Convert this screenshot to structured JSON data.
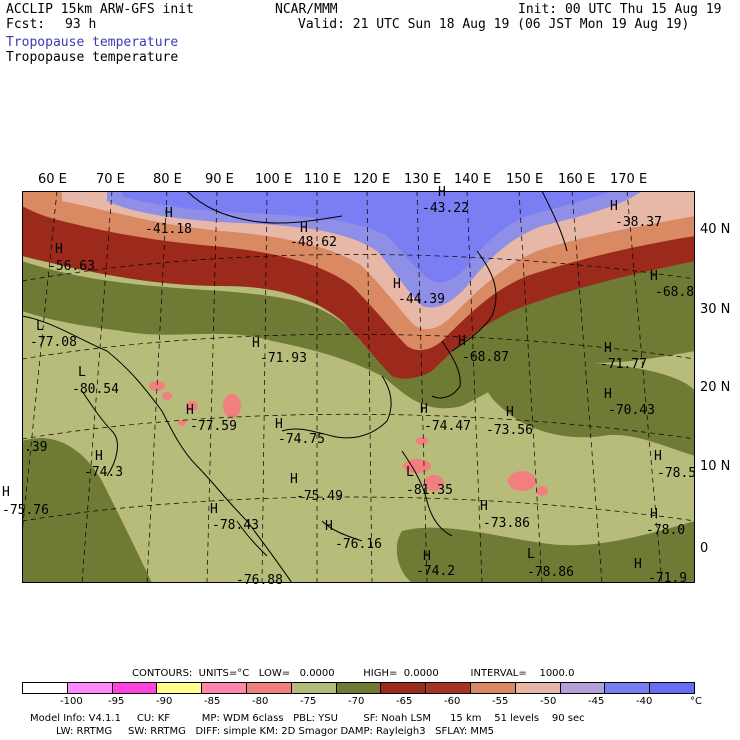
{
  "header": {
    "model": "ACCLIP 15km ARW-GFS init",
    "fcst_label": "Fcst:",
    "fcst_value": "93 h",
    "org": "NCAR/MMM",
    "init": "Init: 00 UTC Thu 15 Aug 19",
    "valid": "Valid: 21 UTC Sun 18 Aug 19 (06 JST Mon 19 Aug 19)",
    "field_title_colored": "Tropopause temperature",
    "field_title": "Tropopause temperature"
  },
  "axes": {
    "lon_labels": [
      "60 E",
      "70 E",
      "80 E",
      "90 E",
      "100 E",
      "110 E",
      "120 E",
      "130 E",
      "140 E",
      "150 E",
      "160 E",
      "170 E"
    ],
    "lat_labels": [
      "40 N",
      "30 N",
      "20 N",
      "10 N",
      "0"
    ]
  },
  "map_labels": [
    {
      "symbol": "H",
      "value": "-41.18"
    },
    {
      "symbol": "H",
      "value": "-48.62"
    },
    {
      "symbol": "H",
      "value": "-43.22"
    },
    {
      "symbol": "H",
      "value": "-38.37"
    },
    {
      "symbol": "H",
      "value": "-56.63"
    },
    {
      "symbol": "H",
      "value": "-44.39"
    },
    {
      "symbol": "H",
      "value": "-68.8"
    },
    {
      "symbol": "L",
      "value": "-77.08"
    },
    {
      "symbol": "H",
      "value": "-71.93"
    },
    {
      "symbol": "H",
      "value": "-68.87"
    },
    {
      "symbol": "H",
      "value": "-71.77"
    },
    {
      "symbol": "L",
      "value": "-80.54"
    },
    {
      "symbol": "H",
      "value": "-70.43"
    },
    {
      "symbol": "H",
      "value": "-77.59"
    },
    {
      "symbol": "H",
      "value": "-74.75"
    },
    {
      "symbol": "H",
      "value": "-74.47"
    },
    {
      "symbol": "H",
      "value": "-73.56"
    },
    {
      "symbol": "H",
      "value": "-74.3"
    },
    {
      "symbol": "L",
      "value": "-81.35"
    },
    {
      "symbol": "H",
      "value": "-78.5"
    },
    {
      "symbol": "H",
      "value": "-75.49"
    },
    {
      "symbol": "H",
      "value": "-75.76"
    },
    {
      "symbol": "H",
      "value": "-78.43"
    },
    {
      "symbol": "H",
      "value": "-73.86"
    },
    {
      "symbol": "H",
      "value": "-78.0"
    },
    {
      "symbol": "H",
      "value": "-76.16"
    },
    {
      "symbol": "H",
      "value": "-74.2"
    },
    {
      "symbol": "L",
      "value": "-78.86"
    },
    {
      "symbol": "H",
      "value": "-71.9"
    },
    {
      "symbol": "",
      "value": "-76.88"
    },
    {
      "symbol": "",
      "value": ".39"
    }
  ],
  "footer": {
    "contours_line": "CONTOURS:  UNITS=°C   LOW=   0.0000         HIGH=  0.0000          INTERVAL=    1000.0",
    "units_symbol": "°C",
    "colorbar_colors": [
      "#ffffff",
      "#ff88ff",
      "#ff44dd",
      "#ffff88",
      "#ff88aa",
      "#f27f7f",
      "#b8bc7a",
      "#6f7a35",
      "#9b2a1c",
      "#a33526",
      "#d98a63",
      "#e7b8a8",
      "#b3a0d8",
      "#7a7ef2",
      "#6a6af5"
    ],
    "colorbar_ticks": [
      "-100",
      "-95",
      "-90",
      "-85",
      "-80",
      "-75",
      "-70",
      "-65",
      "-60",
      "-55",
      "-50",
      "-45",
      "-40"
    ],
    "model_info_1": "Model Info: V4.1.1     CU: KF          MP: WDM 6class   PBL: YSU        SF: Noah LSM      15 km    51 levels    90 sec",
    "model_info_2": "LW: RRTMG     SW: RRTMG   DIFF: simple KM: 2D Smagor DAMP: Rayleigh3   SFLAY: MM5"
  },
  "colors": {
    "title_blue": "#3b3bb0",
    "cold_green": "#b8bc7a",
    "olive": "#6f7a35",
    "dark_red": "#9b2a1c",
    "brick": "#c1492e",
    "salmon": "#d98a63",
    "light_pink": "#e7b8a8",
    "lavender": "#8f8fe8",
    "pink_spots": "#f27f7f"
  }
}
